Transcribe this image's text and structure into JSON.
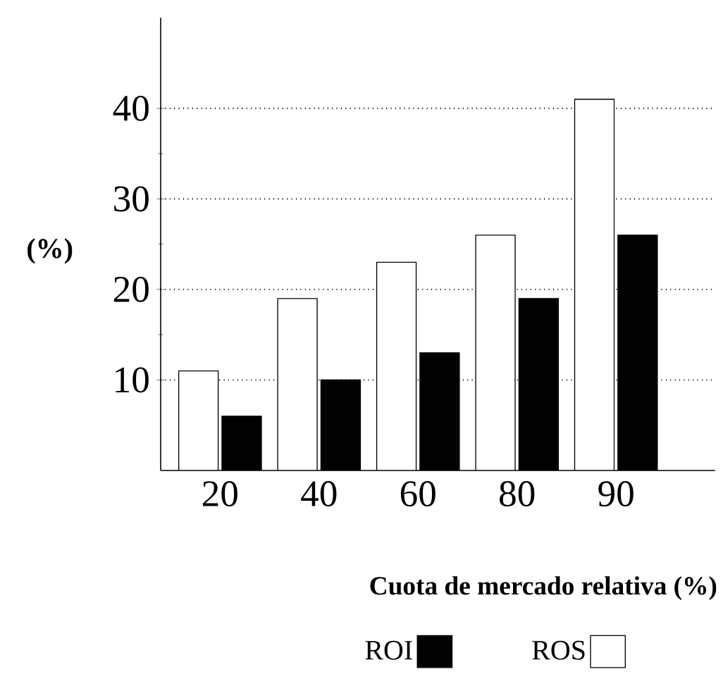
{
  "chart_data": {
    "type": "bar",
    "xlabel": "Cuota de mercado relativa (%)",
    "ylabel": "(%)",
    "categories": [
      "20",
      "40",
      "60",
      "80",
      "90"
    ],
    "series": [
      {
        "name": "ROS",
        "color": "#ffffff",
        "values": [
          11,
          19,
          23,
          26,
          41
        ]
      },
      {
        "name": "ROI",
        "color": "#000000",
        "values": [
          6,
          10,
          13,
          19,
          26
        ]
      }
    ],
    "ylim": [
      0,
      50
    ],
    "yticks": [
      10,
      20,
      30,
      40
    ],
    "grid": "y",
    "legend": "bottom"
  }
}
